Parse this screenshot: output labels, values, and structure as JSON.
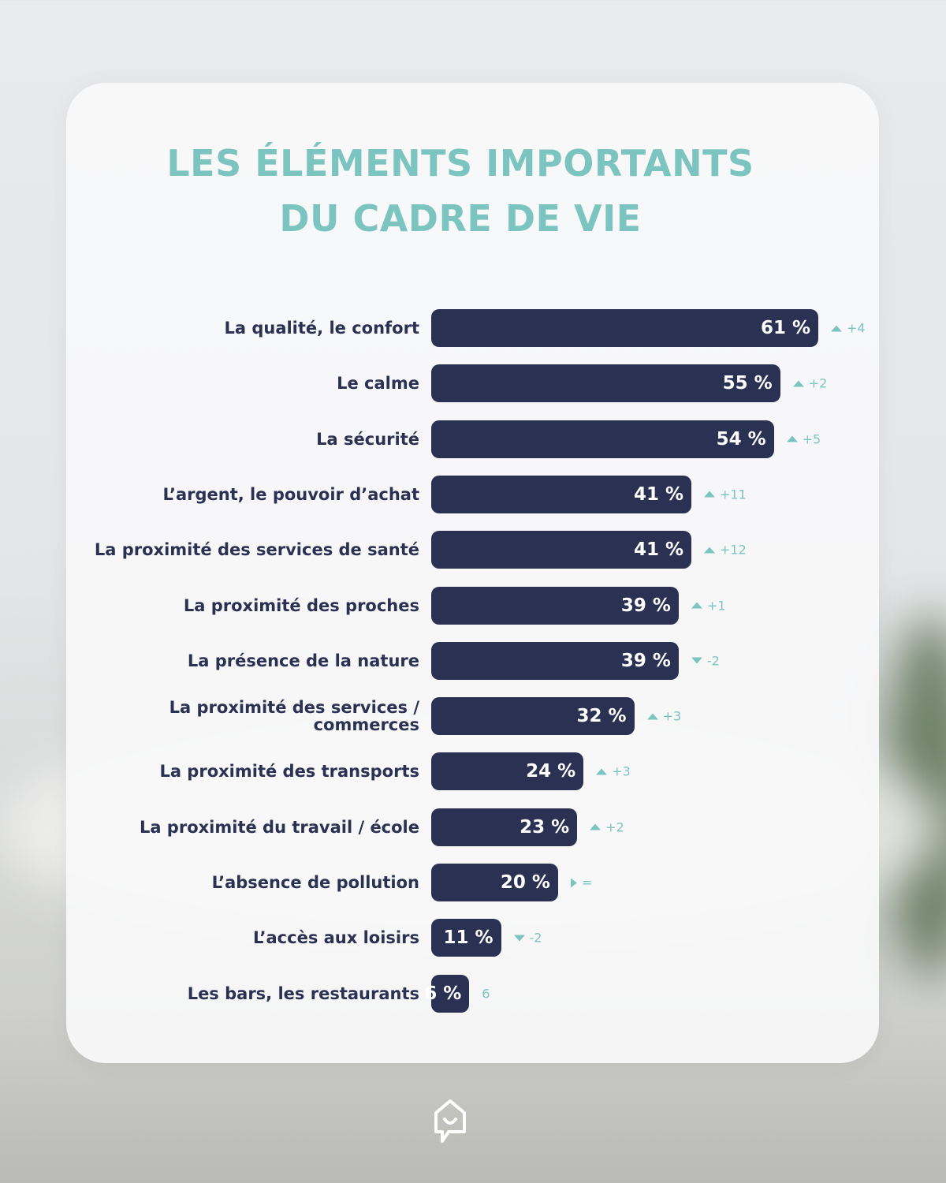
{
  "chart_data": {
    "type": "bar",
    "orientation": "horizontal",
    "title": "LES ÉLÉMENTS IMPORTANTS\nDU CADRE DE VIE",
    "categories": [
      "La qualité, le confort",
      "Le calme",
      "La sécurité",
      "L’argent, le pouvoir d’achat",
      "La proximité des services de santé",
      "La proximité des proches",
      "La présence de la nature",
      "La proximité des services /\ncommerces",
      "La proximité des transports",
      "La proximité du travail  / école",
      "L’absence de pollution",
      "L’accès aux loisirs",
      "Les bars, les restaurants"
    ],
    "values": [
      61,
      55,
      54,
      41,
      41,
      39,
      39,
      32,
      24,
      23,
      20,
      11,
      6
    ],
    "value_labels": [
      "61 %",
      "55 %",
      "54 %",
      "41 %",
      "41 %",
      "39 %",
      "39 %",
      "32 %",
      "24 %",
      "23 %",
      "20 %",
      "11 %",
      "6 %"
    ],
    "changes": [
      "+4",
      "+2",
      "+5",
      "+11",
      "+12",
      "+1",
      "-2",
      "+3",
      "+3",
      "+2",
      "=",
      "-2",
      "6"
    ],
    "color": "#2b3153",
    "accent_color": "#7cc4c0"
  }
}
